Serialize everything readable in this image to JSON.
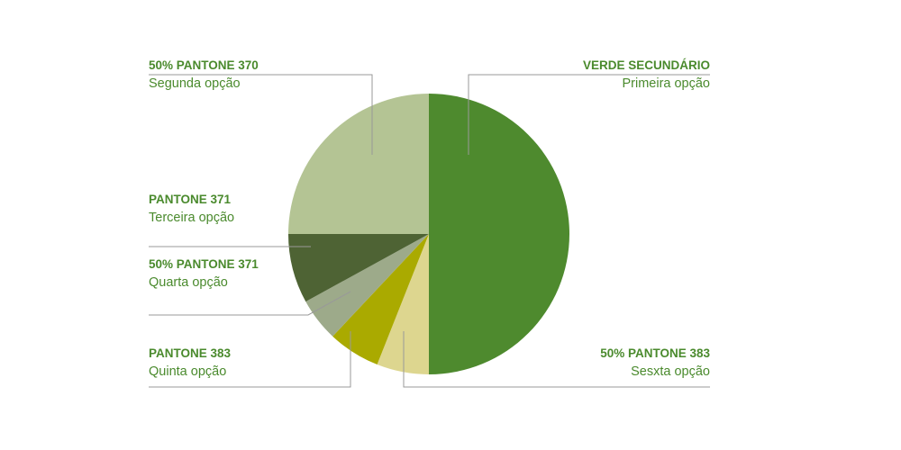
{
  "chart_data": {
    "type": "pie",
    "start": "12 o'clock",
    "direction": "clockwise",
    "slices": [
      {
        "name": "VERDE SECUNDÁRIO",
        "desc": "Primeira opção",
        "value": 50,
        "color": "#4e8a2e"
      },
      {
        "name": "50% PANTONE 383",
        "desc": "Sesxta opção",
        "value": 6,
        "color": "#ddd68f"
      },
      {
        "name": "PANTONE 383",
        "desc": "Quinta opção",
        "value": 6,
        "color": "#aaaa00"
      },
      {
        "name": "50% PANTONE 371",
        "desc": "Quarta opção",
        "value": 5,
        "color": "#9daa8a"
      },
      {
        "name": "PANTONE 371",
        "desc": "Terceira opção",
        "value": 8,
        "color": "#4e6334"
      },
      {
        "name": "50% PANTONE 370",
        "desc": "Segunda opção",
        "value": 25,
        "color": "#b4c494"
      }
    ],
    "label_color": "#4a8a2d",
    "leader_color": "#999999"
  }
}
